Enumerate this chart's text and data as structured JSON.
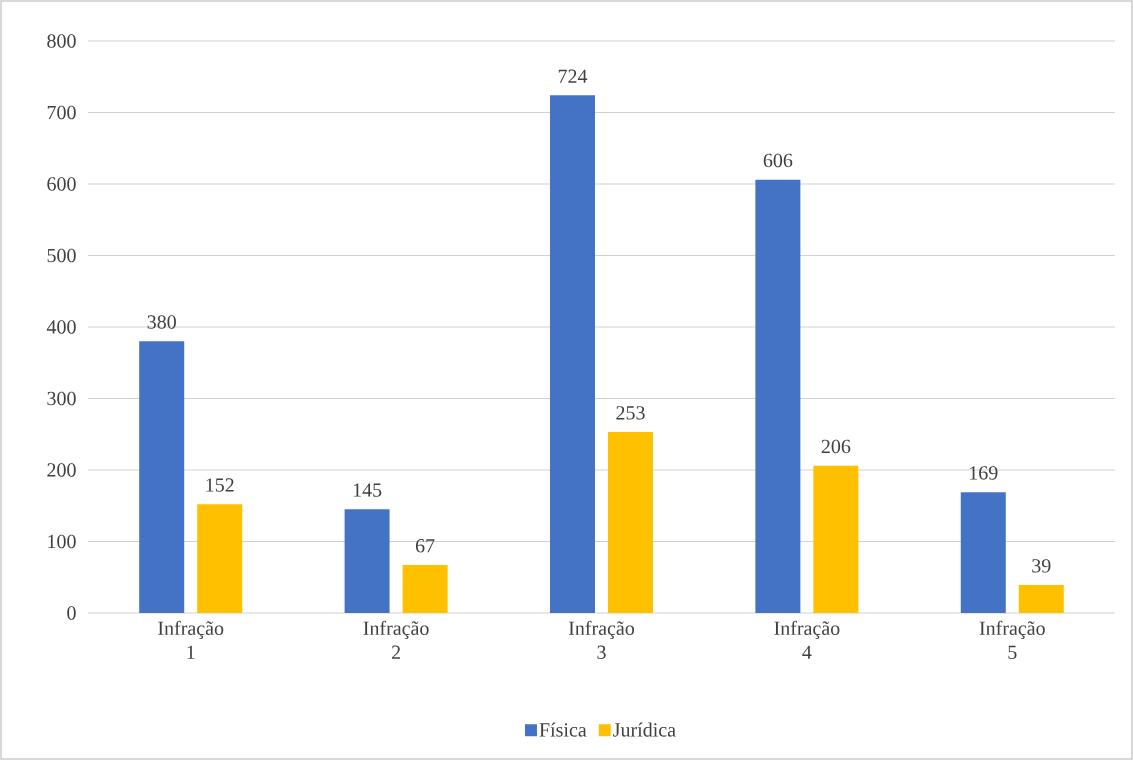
{
  "chart_data": {
    "type": "bar",
    "categories": [
      "Infração 1",
      "Infração 2",
      "Infração 3",
      "Infração 4",
      "Infração 5"
    ],
    "series": [
      {
        "name": "Física",
        "color": "#4472c4",
        "values": [
          380,
          145,
          724,
          606,
          169
        ]
      },
      {
        "name": "Jurídica",
        "color": "#ffc000",
        "values": [
          152,
          67,
          253,
          206,
          39
        ]
      }
    ],
    "ylim": [
      0,
      800
    ],
    "yticks": [
      0,
      100,
      200,
      300,
      400,
      500,
      600,
      700,
      800
    ],
    "grid": "y",
    "legend": "bottom",
    "data_labels": true
  }
}
